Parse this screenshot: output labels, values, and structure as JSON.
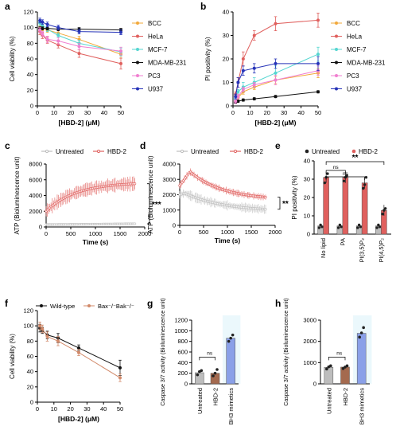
{
  "chart_data": [
    {
      "panel": "a",
      "type": "line",
      "xlabel": "[HBD-2] (μM)",
      "ylabel": "Cell viability (%)",
      "xlim": [
        0,
        50
      ],
      "ylim": [
        0,
        120
      ],
      "xticks": [
        "0",
        "10",
        "20",
        "30",
        "40",
        "50"
      ],
      "yticks": [
        "0",
        "20",
        "40",
        "60",
        "80",
        "100",
        "120"
      ],
      "x": [
        1.5,
        3,
        6,
        12.5,
        25,
        50
      ],
      "series": [
        {
          "name": "BCC",
          "color": "#f2a93b",
          "values": [
            100,
            99,
            97,
            93,
            85,
            66
          ],
          "err": [
            3,
            3,
            3,
            3,
            4,
            5
          ]
        },
        {
          "name": "HeLa",
          "color": "#e0605e",
          "values": [
            95,
            90,
            84,
            78,
            67,
            54
          ],
          "err": [
            4,
            4,
            4,
            4,
            5,
            7
          ]
        },
        {
          "name": "MCF-7",
          "color": "#55d6d1",
          "values": [
            106,
            103,
            98,
            90,
            80,
            69
          ],
          "err": [
            3,
            3,
            3,
            3,
            4,
            5
          ]
        },
        {
          "name": "MDA-MB-231",
          "color": "#111111",
          "values": [
            99,
            99,
            99,
            98,
            98,
            97
          ],
          "err": [
            2,
            2,
            2,
            2,
            2,
            2
          ]
        },
        {
          "name": "PC3",
          "color": "#f07fd0",
          "values": [
            97,
            92,
            85,
            83,
            76,
            70
          ],
          "err": [
            3,
            3,
            4,
            4,
            4,
            5
          ]
        },
        {
          "name": "U937",
          "color": "#2633b8",
          "values": [
            109,
            107,
            104,
            100,
            95,
            94
          ],
          "err": [
            3,
            3,
            3,
            3,
            3,
            3
          ]
        }
      ],
      "legend_position": "right"
    },
    {
      "panel": "b",
      "type": "line",
      "xlabel": "[HBD-2] (μM)",
      "ylabel": "PI positivity (%)",
      "xlim": [
        0,
        50
      ],
      "ylim": [
        0,
        40
      ],
      "xticks": [
        "0",
        "10",
        "20",
        "30",
        "40",
        "50"
      ],
      "yticks": [
        "0",
        "10",
        "20",
        "30",
        "40"
      ],
      "x": [
        1.5,
        3,
        6,
        12.5,
        25,
        50
      ],
      "series": [
        {
          "name": "BCC",
          "color": "#f2a93b",
          "values": [
            2,
            3.5,
            6,
            8,
            11,
            14
          ],
          "err": [
            0.5,
            1,
            1,
            1,
            1.5,
            2
          ]
        },
        {
          "name": "HeLa",
          "color": "#e0605e",
          "values": [
            5,
            10,
            20,
            30,
            35,
            36.5
          ],
          "err": [
            1,
            2,
            3,
            2,
            3,
            3
          ]
        },
        {
          "name": "MCF-7",
          "color": "#55d6d1",
          "values": [
            3,
            6,
            8,
            10,
            14,
            22
          ],
          "err": [
            1,
            1,
            2,
            2,
            3,
            3
          ]
        },
        {
          "name": "MDA-MB-231",
          "color": "#111111",
          "values": [
            1.5,
            2,
            2.5,
            3,
            4,
            6
          ],
          "err": [
            0.5,
            0.5,
            0.5,
            0.5,
            0.5,
            0.5
          ]
        },
        {
          "name": "PC3",
          "color": "#f07fd0",
          "values": [
            2,
            4,
            7,
            9,
            11,
            15
          ],
          "err": [
            1,
            1,
            1,
            1,
            2,
            2
          ]
        },
        {
          "name": "U937",
          "color": "#2633b8",
          "values": [
            4,
            10,
            15,
            16,
            18,
            18
          ],
          "err": [
            1,
            2,
            2,
            2,
            2,
            3
          ]
        }
      ],
      "legend_position": "right"
    },
    {
      "panel": "c",
      "type": "line",
      "xlabel": "Time (s)",
      "ylabel": "ATP (Bioluminescence unit)",
      "xlim": [
        0,
        2000
      ],
      "ylim": [
        0,
        8000
      ],
      "xticks": [
        "0",
        "500",
        "1000",
        "1500",
        "2000"
      ],
      "yticks": [
        "0",
        "2000",
        "4000",
        "6000",
        "8000"
      ],
      "series": [
        {
          "name": "Untreated",
          "color": "#bdbdbd",
          "kind": "flat",
          "start": 300,
          "end": 400,
          "noise": 80
        },
        {
          "name": "HBD-2",
          "color": "#e0605e",
          "kind": "rise",
          "start": 2000,
          "mid": 4500,
          "end": 5500,
          "noise": 700
        }
      ],
      "xmax": 1800,
      "annotation": "***",
      "legend_position": "top"
    },
    {
      "panel": "d",
      "type": "line",
      "xlabel": "Time (s)",
      "ylabel": "ATP (Bioluminescence unit)",
      "xlim": [
        0,
        2000
      ],
      "ylim": [
        0,
        4000
      ],
      "xticks": [
        "0",
        "500",
        "1000",
        "1500",
        "2000"
      ],
      "yticks": [
        "0",
        "1000",
        "2000",
        "3000",
        "4000"
      ],
      "series": [
        {
          "name": "Untreated",
          "color": "#bdbdbd",
          "kind": "decay",
          "start": 2000,
          "peak": 2100,
          "end": 900,
          "noise": 250
        },
        {
          "name": "HBD-2",
          "color": "#e0605e",
          "kind": "peak",
          "start": 2600,
          "peak": 3500,
          "end": 1650,
          "noise": 180
        }
      ],
      "xmax": 1800,
      "annotation": "**",
      "legend_position": "top"
    },
    {
      "panel": "e",
      "type": "bar",
      "ylabel": "PI positivity (%)",
      "ylim": [
        0,
        40
      ],
      "yticks": [
        "0",
        "10",
        "20",
        "30",
        "40"
      ],
      "categories": [
        "No lipid",
        "PA",
        "PI(3,5)P₂",
        "PI(4,5)P₂"
      ],
      "series": [
        {
          "name": "Untreated",
          "color": "#bdbdbd",
          "values": [
            4.5,
            4.5,
            4.5,
            4.5
          ],
          "points": [
            [
              3.5,
              5,
              4
            ],
            [
              3.5,
              5,
              4
            ],
            [
              3.5,
              5,
              4
            ],
            [
              3.5,
              5,
              4
            ]
          ]
        },
        {
          "name": "HBD-2",
          "color": "#e0605e",
          "values": [
            31,
            31,
            28,
            13
          ],
          "points": [
            [
              28,
              31,
              33
            ],
            [
              29,
              31,
              32
            ],
            [
              25,
              27,
              31
            ],
            [
              11,
              13,
              14
            ]
          ]
        }
      ],
      "comparisons": [
        "ns",
        "ns",
        "**"
      ],
      "legend_position": "top"
    },
    {
      "panel": "f",
      "type": "line",
      "xlabel": "[HBD-2] (μM)",
      "ylabel": "Cell viability (%)",
      "xlim": [
        0,
        50
      ],
      "ylim": [
        0,
        120
      ],
      "xticks": [
        "0",
        "10",
        "20",
        "30",
        "40",
        "50"
      ],
      "yticks": [
        "0",
        "20",
        "40",
        "60",
        "80",
        "100",
        "120"
      ],
      "x": [
        1.5,
        3,
        6,
        12.5,
        25,
        50
      ],
      "series": [
        {
          "name": "Wild-type",
          "color": "#111111",
          "values": [
            97,
            94,
            88,
            84,
            71,
            45
          ],
          "err": [
            5,
            4,
            5,
            6,
            4,
            10
          ]
        },
        {
          "name": "Bax⁻/⁻Bak⁻/⁻",
          "color": "#d28a6a",
          "values": [
            100,
            96,
            86,
            80,
            65,
            32
          ],
          "err": [
            5,
            5,
            6,
            6,
            4,
            5
          ]
        }
      ],
      "legend_position": "top"
    },
    {
      "panel": "g",
      "type": "bar",
      "ylabel": "Caspase 3/7 activity (Bioluminescence unit)",
      "ylim": [
        0,
        1200
      ],
      "yticks": [
        "0",
        "200",
        "400",
        "600",
        "800",
        "1000",
        "1200"
      ],
      "categories": [
        "Untreated",
        "HBD-2",
        "BH3 mimetics"
      ],
      "values": [
        210,
        200,
        860
      ],
      "colors": [
        "#bdbdbd",
        "#a46a4f",
        "#8aa0e8"
      ],
      "points": [
        [
          170,
          230,
          250
        ],
        [
          150,
          200,
          270
        ],
        [
          800,
          860,
          920
        ]
      ],
      "comparison": "ns"
    },
    {
      "panel": "h",
      "type": "bar",
      "ylabel": "Caspase 3/7 activity (Bioluminescence unit)",
      "ylim": [
        0,
        3000
      ],
      "yticks": [
        "0",
        "1000",
        "2000",
        "3000"
      ],
      "categories": [
        "Untreated",
        "HBD-2",
        "BH3 mimetics"
      ],
      "values": [
        780,
        790,
        2380
      ],
      "colors": [
        "#bdbdbd",
        "#a46a4f",
        "#8aa0e8"
      ],
      "points": [
        [
          700,
          800,
          850
        ],
        [
          720,
          790,
          850
        ],
        [
          2200,
          2400,
          2650
        ]
      ],
      "comparison": "ns"
    }
  ],
  "panel_labels": [
    "a",
    "b",
    "c",
    "d",
    "e",
    "f",
    "g",
    "h"
  ]
}
